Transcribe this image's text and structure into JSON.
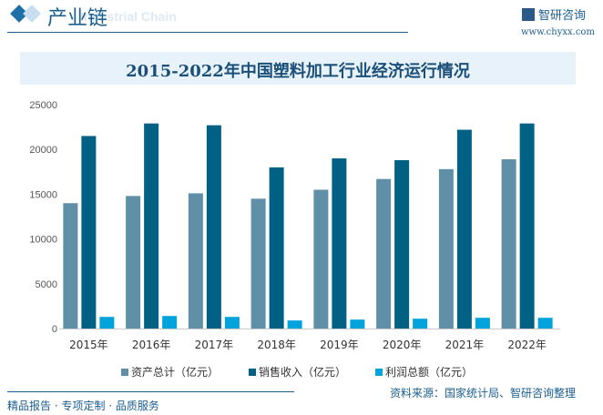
{
  "header": {
    "title": "产业链",
    "subtitle": "Industrial Chain",
    "logo_text": "智研咨询",
    "url": "www.chyxx.com"
  },
  "footer": {
    "left": "精品报告 · 专项定制 · 品质服务",
    "source": "资料来源：国家统计局、智研咨询整理"
  },
  "colors": {
    "资产总计": "#5f90a8",
    "销售收入": "#006185",
    "利润总额": "#00a3dc"
  },
  "chart_data": {
    "type": "bar",
    "title": "2015-2022年中国塑料加工行业经济运行情况",
    "categories": [
      "2015年",
      "2016年",
      "2017年",
      "2018年",
      "2019年",
      "2020年",
      "2021年",
      "2022年"
    ],
    "series": [
      {
        "name": "资产总计（亿元）",
        "values": [
          14000,
          14800,
          15100,
          14500,
          15500,
          16700,
          17800,
          18900
        ]
      },
      {
        "name": "销售收入（亿元）",
        "values": [
          21500,
          22900,
          22700,
          18000,
          19000,
          18800,
          22200,
          22900
        ]
      },
      {
        "name": "利润总额（亿元）",
        "values": [
          1300,
          1400,
          1300,
          900,
          1000,
          1100,
          1200,
          1200
        ]
      }
    ],
    "ylim": [
      0,
      25000
    ],
    "yticks": [
      "0",
      "5000",
      "10000",
      "15000",
      "20000",
      "25000"
    ],
    "grid": false,
    "legend": "bottom"
  }
}
